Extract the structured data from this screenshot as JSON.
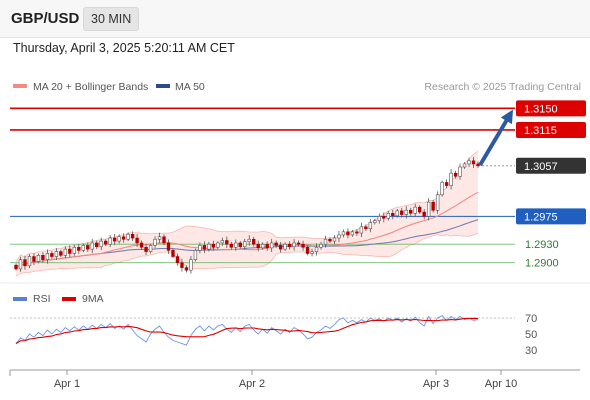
{
  "header": {
    "pair": "GBP/USD",
    "timeframe": "30 MIN"
  },
  "datetime": "Thursday, April 3, 2025 5:20:11 AM CET",
  "legend": {
    "ma20": "MA 20 + Bollinger Bands",
    "ma50": "MA 50",
    "rsi": "RSI",
    "rsi_ma": "9MA"
  },
  "credit": "Research © 2025 Trading Central",
  "colors": {
    "resistance": "#dd0000",
    "support": "#1f5fbf",
    "green": "#4caf50",
    "bull": "#ffffff",
    "bear": "#b30000",
    "band_fill": "#fde4e2",
    "ma20": "#f28b82",
    "ma50": "#7a7fb0",
    "rsi": "#6f93e0",
    "rsi_ma": "#dd0000",
    "arrow": "#2c5aa0",
    "current_tag": "#333333"
  },
  "chart_data": {
    "type": "candlestick",
    "x_ticks": [
      "Apr 1",
      "Apr 2",
      "Apr 3",
      "Apr 10"
    ],
    "ylim": [
      1.2872,
      1.317
    ],
    "levels": [
      {
        "value": 1.315,
        "label": "1.3150",
        "kind": "resistance"
      },
      {
        "value": 1.3115,
        "label": "1.3115",
        "kind": "resistance"
      },
      {
        "value": 1.3057,
        "label": "1.3057",
        "kind": "current"
      },
      {
        "value": 1.2975,
        "label": "1.2975",
        "kind": "pivot"
      },
      {
        "value": 1.293,
        "label": "1.2930",
        "kind": "support"
      },
      {
        "value": 1.29,
        "label": "1.2900",
        "kind": "support"
      }
    ],
    "arrow": {
      "from": 1.3058,
      "to": 1.3148
    },
    "close": [
      1.289,
      1.2905,
      1.2895,
      1.291,
      1.2902,
      1.2912,
      1.2905,
      1.2915,
      1.291,
      1.2918,
      1.2912,
      1.2922,
      1.2915,
      1.2925,
      1.292,
      1.2928,
      1.2922,
      1.2932,
      1.2926,
      1.2935,
      1.293,
      1.294,
      1.2935,
      1.2942,
      1.2938,
      1.2946,
      1.294,
      1.2932,
      1.2925,
      1.2918,
      1.2928,
      1.2938,
      1.2942,
      1.2932,
      1.292,
      1.291,
      1.29,
      1.2892,
      1.2888,
      1.2905,
      1.292,
      1.2928,
      1.2922,
      1.293,
      1.2925,
      1.2932,
      1.2936,
      1.293,
      1.2925,
      1.2932,
      1.2926,
      1.2934,
      1.2938,
      1.293,
      1.2924,
      1.293,
      1.2924,
      1.2932,
      1.2928,
      1.2922,
      1.293,
      1.2926,
      1.2932,
      1.293,
      1.2925,
      1.2915,
      1.2918,
      1.2925,
      1.293,
      1.2938,
      1.2935,
      1.294,
      1.2945,
      1.295,
      1.2945,
      1.295,
      1.2948,
      1.2958,
      1.2955,
      1.2965,
      1.2968,
      1.2975,
      1.2972,
      1.298,
      1.2976,
      1.2984,
      1.2978,
      1.2985,
      1.298,
      1.299,
      1.2982,
      1.2975,
      1.2998,
      1.2985,
      1.301,
      1.303,
      1.3025,
      1.3045,
      1.304,
      1.3055,
      1.306,
      1.3065,
      1.306,
      1.3057
    ],
    "rsi": [
      38,
      45,
      42,
      50,
      46,
      52,
      48,
      55,
      50,
      56,
      52,
      58,
      54,
      59,
      55,
      60,
      56,
      61,
      57,
      62,
      58,
      63,
      57,
      60,
      56,
      62,
      55,
      48,
      44,
      40,
      50,
      56,
      60,
      52,
      46,
      42,
      40,
      38,
      36,
      48,
      56,
      60,
      54,
      60,
      55,
      60,
      62,
      56,
      52,
      58,
      53,
      60,
      62,
      55,
      50,
      56,
      51,
      58,
      54,
      50,
      56,
      52,
      58,
      55,
      50,
      44,
      46,
      52,
      55,
      60,
      57,
      62,
      68,
      70,
      64,
      67,
      64,
      68,
      65,
      70,
      67,
      69,
      66,
      70,
      67,
      70,
      65,
      69,
      66,
      71,
      64,
      60,
      72,
      63,
      70,
      73,
      67,
      72,
      68,
      72,
      68,
      70,
      67,
      68
    ],
    "rsi_ticks": [
      70,
      50,
      30
    ]
  }
}
